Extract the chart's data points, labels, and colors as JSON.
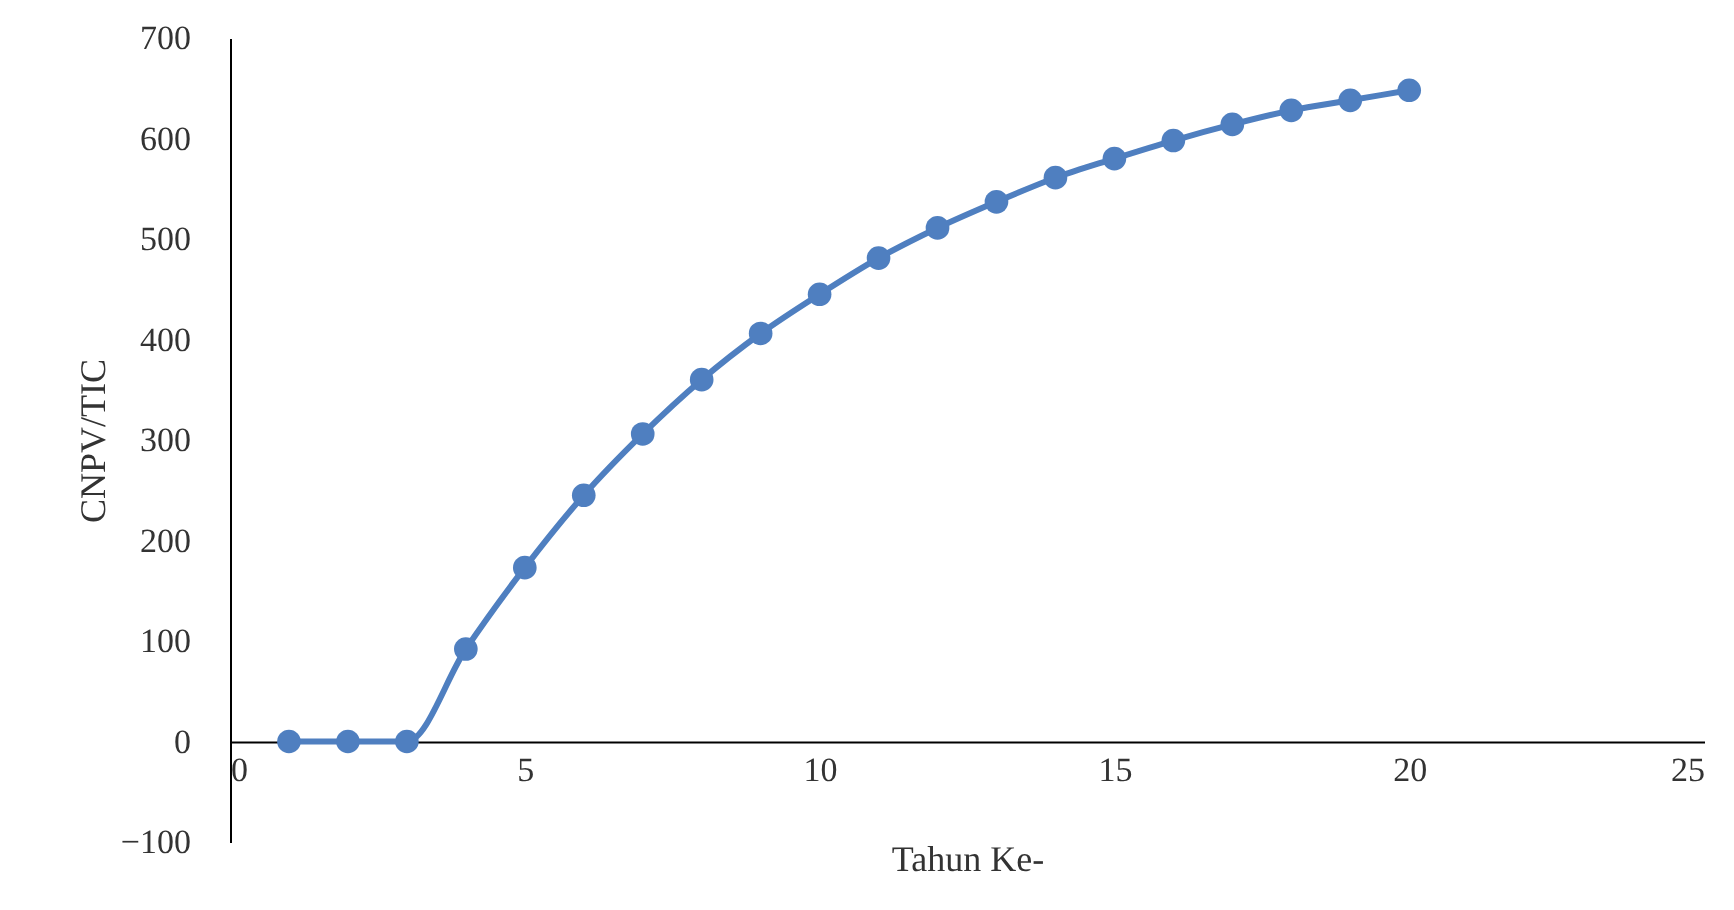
{
  "chart_data": {
    "type": "line",
    "xlabel": "Tahun Ke-",
    "ylabel": "CNPV/TIC",
    "x": [
      1,
      2,
      3,
      4,
      5,
      6,
      7,
      8,
      9,
      10,
      11,
      12,
      13,
      14,
      15,
      16,
      17,
      18,
      19,
      20
    ],
    "series": [
      {
        "color": "#4f7fc0",
        "values": [
          0,
          0,
          0,
          92,
          173,
          245,
          306,
          360,
          406,
          445,
          481,
          511,
          537,
          561,
          580,
          598,
          614,
          628,
          638,
          648
        ]
      }
    ],
    "xlim": [
      0,
      25
    ],
    "xticks": [
      0,
      5,
      10,
      15,
      20,
      25
    ],
    "ylim": [
      -100,
      700
    ],
    "yticks": [
      -100,
      0,
      100,
      200,
      300,
      400,
      500,
      600,
      700
    ],
    "grid": false,
    "marker": "circle",
    "line_style": "solid"
  }
}
